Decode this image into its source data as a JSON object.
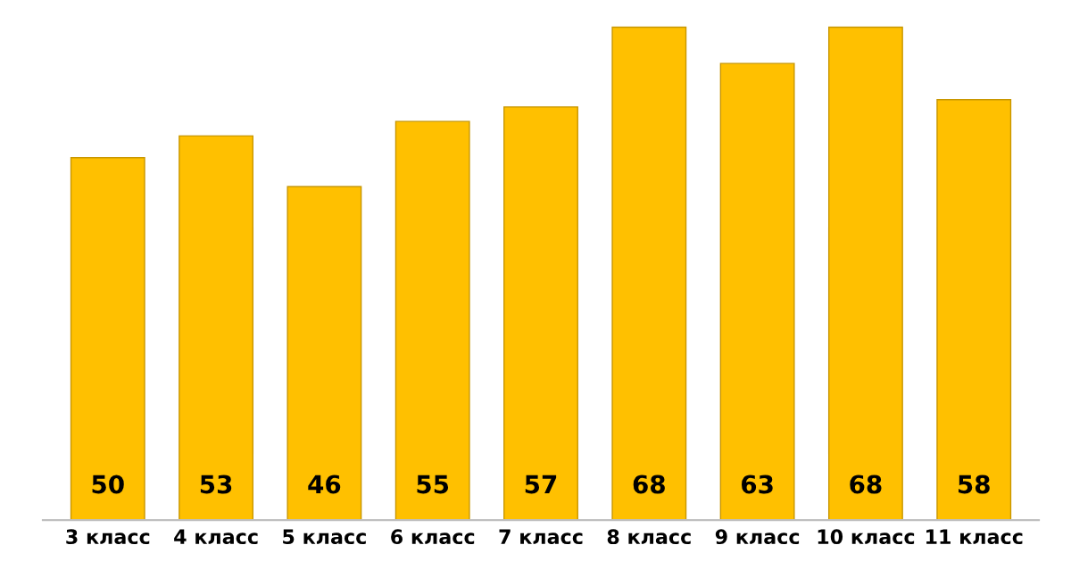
{
  "chart_data": {
    "type": "bar",
    "categories": [
      "3 класс",
      "4 класс",
      "5 класс",
      "6 класс",
      "7 класс",
      "8 класс",
      "9 класс",
      "10 класс",
      "11 класс"
    ],
    "values": [
      50,
      53,
      46,
      55,
      57,
      68,
      63,
      68,
      58
    ],
    "color": "#ffc000",
    "data_labels": true
  }
}
